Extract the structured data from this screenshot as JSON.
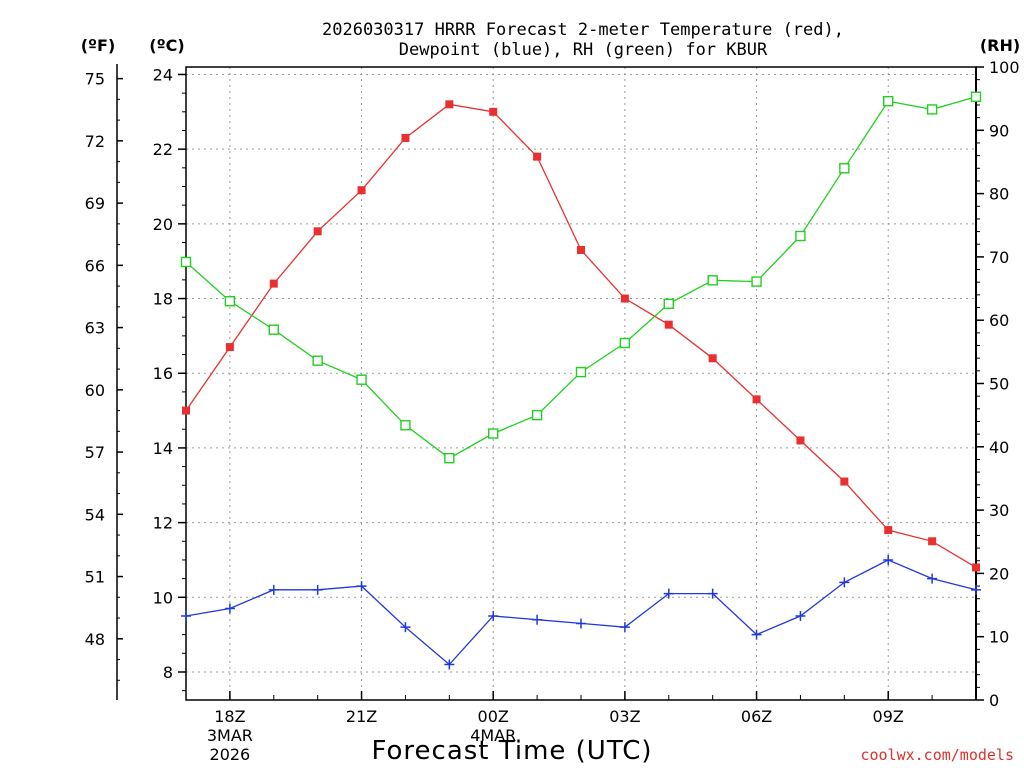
{
  "chart_data": {
    "type": "line",
    "title_line1": "2026030317 HRRR Forecast 2-meter Temperature (red),",
    "title_line2": "Dewpoint (blue), RH (green) for KBUR",
    "xlabel": "Forecast Time (UTC)",
    "credit": "coolwx.com/models",
    "units": {
      "fahrenheit": "(ºF)",
      "celsius": "(ºC)",
      "rh": "(RH)"
    },
    "celsius_ticks": [
      8,
      10,
      12,
      14,
      16,
      18,
      20,
      22,
      24
    ],
    "fahrenheit_ticks": [
      48,
      51,
      54,
      57,
      60,
      63,
      66,
      69,
      72,
      75
    ],
    "rh_ticks": [
      0,
      10,
      20,
      30,
      40,
      50,
      60,
      70,
      80,
      90,
      100
    ],
    "ylim_celsius": [
      7.25,
      24.2
    ],
    "ylim_rh": [
      0,
      100
    ],
    "x_hours": [
      17,
      18,
      19,
      20,
      21,
      22,
      23,
      24,
      25,
      26,
      27,
      28,
      29,
      30,
      31,
      32,
      33,
      34,
      35
    ],
    "x_ticks": [
      {
        "hour": 18,
        "label": "18Z",
        "sub1": "3MAR",
        "sub2": "2026"
      },
      {
        "hour": 21,
        "label": "21Z",
        "sub1": "",
        "sub2": ""
      },
      {
        "hour": 24,
        "label": "00Z",
        "sub1": "4MAR",
        "sub2": ""
      },
      {
        "hour": 27,
        "label": "03Z",
        "sub1": "",
        "sub2": ""
      },
      {
        "hour": 30,
        "label": "06Z",
        "sub1": "",
        "sub2": ""
      },
      {
        "hour": 33,
        "label": "09Z",
        "sub1": "",
        "sub2": ""
      }
    ],
    "xlim_hours": [
      17,
      35
    ],
    "series": [
      {
        "name": "Temperature",
        "color": "#e83030",
        "marker": "filled-square",
        "axis": "celsius",
        "values": [
          15.0,
          16.7,
          18.4,
          19.8,
          20.9,
          22.3,
          23.2,
          23.0,
          21.8,
          19.3,
          18.0,
          17.3,
          16.4,
          15.3,
          14.2,
          13.1,
          11.8,
          11.5,
          10.8
        ]
      },
      {
        "name": "Dewpoint",
        "color": "#2038e0",
        "marker": "plus",
        "axis": "celsius",
        "values": [
          9.5,
          9.7,
          10.2,
          10.2,
          10.3,
          9.2,
          8.2,
          9.5,
          9.4,
          9.3,
          9.2,
          10.1,
          10.1,
          9.0,
          9.5,
          10.4,
          11.0,
          10.5,
          10.2
        ]
      },
      {
        "name": "RH",
        "color": "#20d020",
        "marker": "open-square",
        "axis": "rh",
        "values": [
          69.2,
          63.0,
          58.5,
          53.6,
          50.6,
          43.4,
          38.2,
          42.1,
          45.0,
          51.8,
          56.4,
          62.6,
          66.3,
          66.1,
          73.3,
          84.0,
          94.6,
          93.3,
          95.3
        ]
      }
    ]
  }
}
